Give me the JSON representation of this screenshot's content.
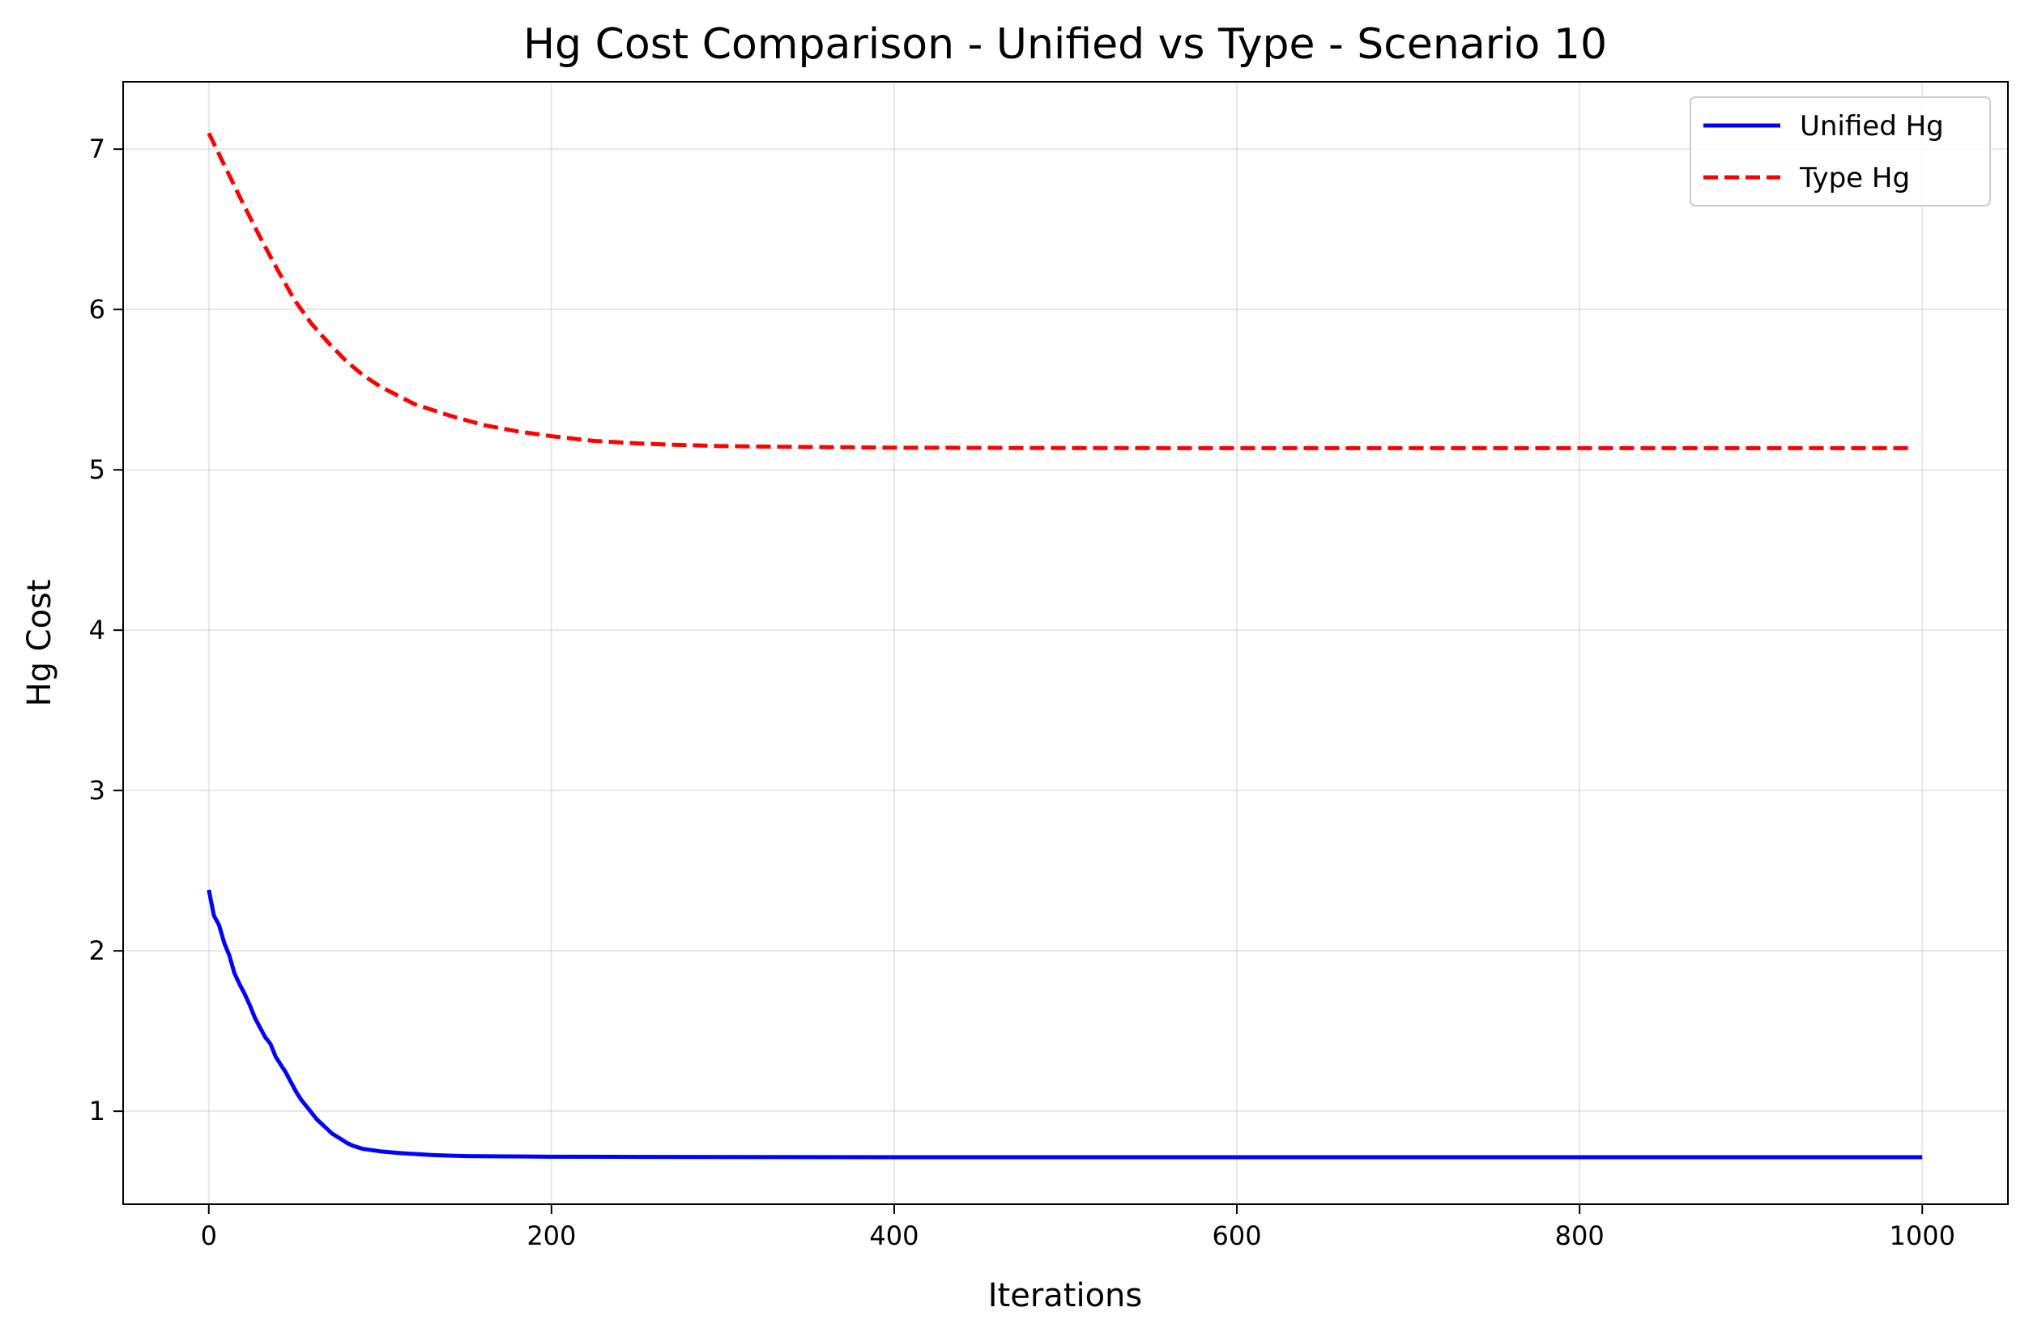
{
  "chart_data": {
    "type": "line",
    "title": "Hg Cost Comparison - Unified vs Type - Scenario 10",
    "xlabel": "Iterations",
    "ylabel": "Hg Cost",
    "xlim": [
      -50,
      1050
    ],
    "ylim": [
      0.42,
      7.42
    ],
    "xticks": [
      0,
      200,
      400,
      600,
      800,
      1000
    ],
    "yticks": [
      1,
      2,
      3,
      4,
      5,
      6,
      7
    ],
    "grid": true,
    "legend_position": "top-right",
    "series": [
      {
        "name": "Unified Hg",
        "color": "#0000ff",
        "style": "solid",
        "x": [
          0,
          3,
          6,
          9,
          12,
          15,
          18,
          21,
          24,
          27,
          30,
          33,
          36,
          39,
          42,
          45,
          48,
          51,
          54,
          57,
          60,
          63,
          66,
          69,
          72,
          75,
          78,
          81,
          84,
          87,
          90,
          100,
          110,
          120,
          130,
          140,
          150,
          175,
          200,
          250,
          300,
          400,
          500,
          600,
          700,
          800,
          900,
          1000
        ],
        "y": [
          2.38,
          2.22,
          2.16,
          2.05,
          1.97,
          1.86,
          1.79,
          1.73,
          1.66,
          1.58,
          1.52,
          1.46,
          1.42,
          1.34,
          1.29,
          1.24,
          1.18,
          1.12,
          1.07,
          1.03,
          0.99,
          0.95,
          0.92,
          0.89,
          0.86,
          0.84,
          0.82,
          0.8,
          0.785,
          0.775,
          0.765,
          0.75,
          0.74,
          0.733,
          0.727,
          0.723,
          0.72,
          0.718,
          0.716,
          0.715,
          0.714,
          0.713,
          0.713,
          0.713,
          0.713,
          0.713,
          0.713,
          0.713
        ]
      },
      {
        "name": "Type Hg",
        "color": "#ff0000",
        "style": "dashed",
        "x": [
          0,
          10,
          20,
          30,
          40,
          50,
          60,
          70,
          80,
          90,
          100,
          120,
          140,
          160,
          180,
          200,
          225,
          250,
          275,
          300,
          350,
          400,
          500,
          600,
          700,
          800,
          900,
          995
        ],
        "y": [
          7.1,
          6.88,
          6.66,
          6.45,
          6.25,
          6.06,
          5.91,
          5.79,
          5.68,
          5.59,
          5.52,
          5.41,
          5.34,
          5.28,
          5.24,
          5.21,
          5.18,
          5.165,
          5.155,
          5.148,
          5.142,
          5.138,
          5.136,
          5.135,
          5.135,
          5.135,
          5.135,
          5.135
        ]
      }
    ]
  }
}
